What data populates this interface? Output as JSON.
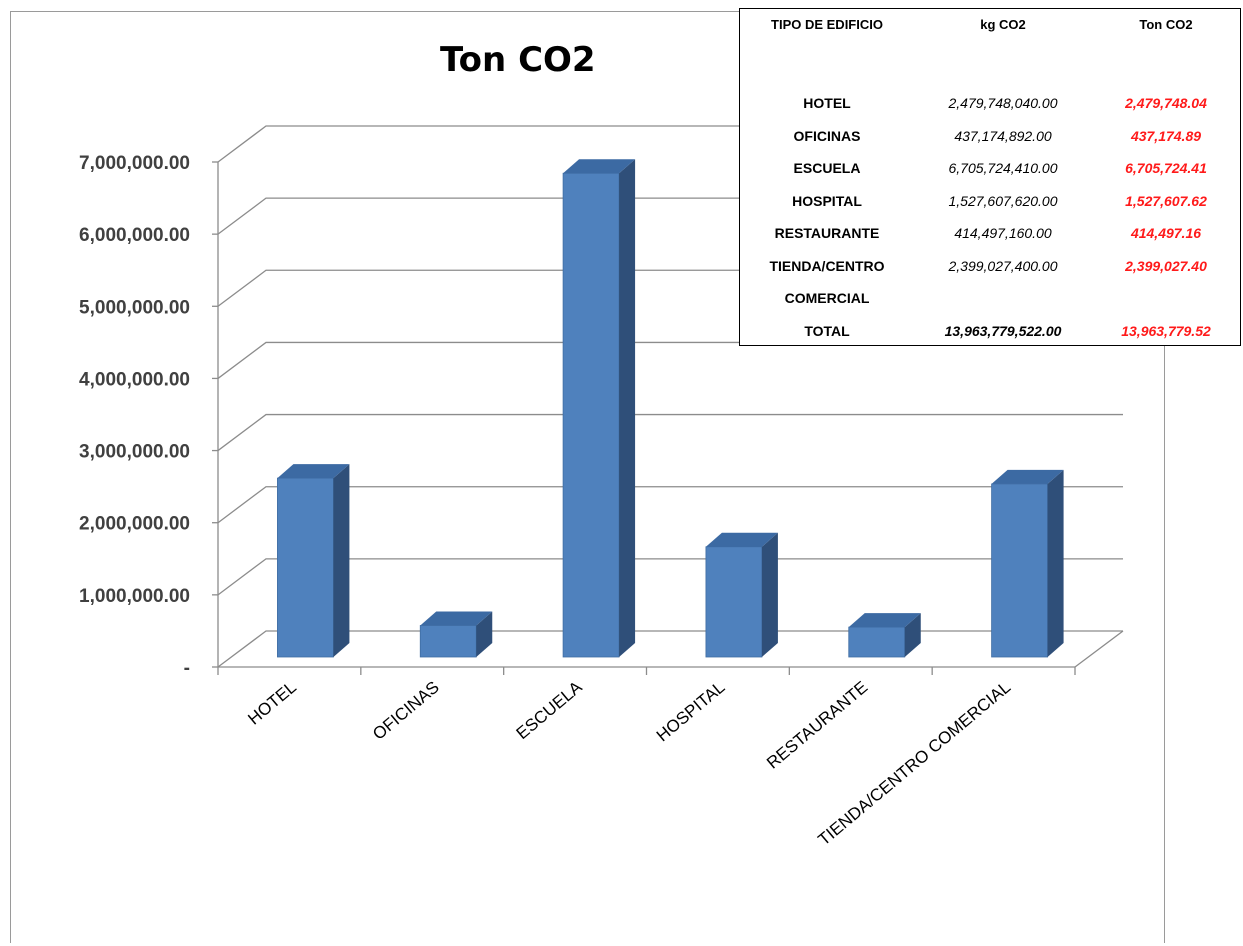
{
  "chart_data": {
    "type": "bar",
    "title": "Ton CO2",
    "categories": [
      "HOTEL",
      "OFICINAS",
      "ESCUELA",
      "HOSPITAL",
      "RESTAURANTE",
      "TIENDA/CENTRO COMERCIAL"
    ],
    "values": [
      2479748.04,
      437174.89,
      6705724.41,
      1527607.62,
      414497.16,
      2399027.4
    ],
    "ylim": [
      0,
      7000000
    ],
    "yticks": [
      0,
      1000000,
      2000000,
      3000000,
      4000000,
      5000000,
      6000000,
      7000000
    ],
    "ytick_labels": [
      "-",
      "1,000,000.00",
      "2,000,000.00",
      "3,000,000.00",
      "4,000,000.00",
      "5,000,000.00",
      "6,000,000.00",
      "7,000,000.00"
    ],
    "grid": true,
    "bar_color": "#4f81bd",
    "bar_side_color": "#2f4f79",
    "bar_top_color": "#3c6aa3"
  },
  "table": {
    "headers": [
      "TIPO DE EDIFICIO",
      "kg CO2",
      "Ton CO2"
    ],
    "rows": [
      {
        "type": "HOTEL",
        "kg": "2,479,748,040.00",
        "ton": "2,479,748.04"
      },
      {
        "type": "OFICINAS",
        "kg": "437,174,892.00",
        "ton": "437,174.89"
      },
      {
        "type": "ESCUELA",
        "kg": "6,705,724,410.00",
        "ton": "6,705,724.41"
      },
      {
        "type": "HOSPITAL",
        "kg": "1,527,607,620.00",
        "ton": "1,527,607.62"
      },
      {
        "type": "RESTAURANTE",
        "kg": "414,497,160.00",
        "ton": "414,497.16"
      },
      {
        "type": "TIENDA/CENTRO",
        "kg": "2,399,027,400.00",
        "ton": "2,399,027.40"
      },
      {
        "type": "COMERCIAL",
        "kg": "",
        "ton": ""
      }
    ],
    "total": {
      "type": "TOTAL",
      "kg": "13,963,779,522.00",
      "ton": "13,963,779.52"
    },
    "ton_color": "#ff1a1a"
  }
}
